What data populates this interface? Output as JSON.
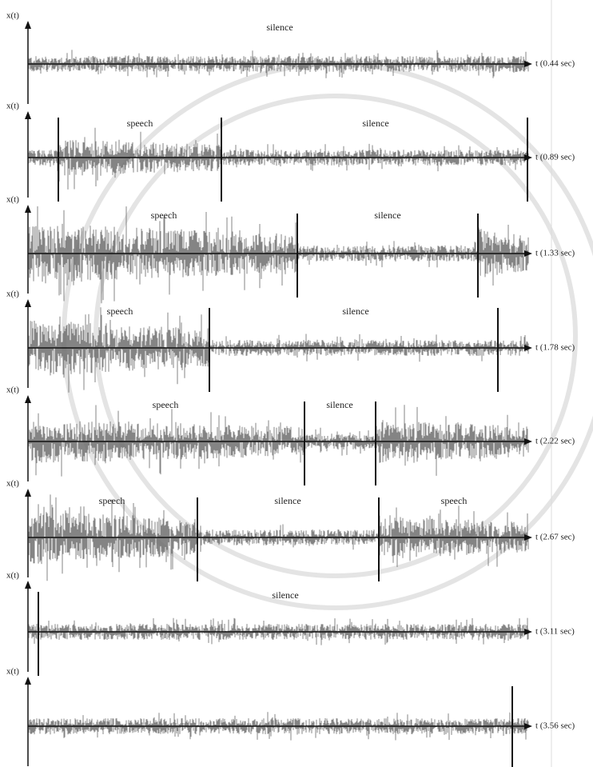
{
  "panels": [
    {
      "y_label": "x(t)",
      "t_label": "t (0.44 sec)",
      "segments": [
        "silence"
      ]
    },
    {
      "y_label": "x(t)",
      "t_label": "t (0.89 sec)",
      "segments": [
        "speech",
        "silence"
      ]
    },
    {
      "y_label": "x(t)",
      "t_label": "t (1.33 sec)",
      "segments": [
        "speech",
        "silence"
      ]
    },
    {
      "y_label": "x(t)",
      "t_label": "t (1.78 sec)",
      "segments": [
        "speech",
        "silence"
      ]
    },
    {
      "y_label": "x(t)",
      "t_label": "t (2.22 sec)",
      "segments": [
        "speech",
        "silence"
      ]
    },
    {
      "y_label": "x(t)",
      "t_label": "t (2.67 sec)",
      "segments": [
        "speech",
        "silence",
        "speech"
      ]
    },
    {
      "y_label": "x(t)",
      "t_label": "t (3.11 sec)",
      "segments": [
        "silence"
      ]
    },
    {
      "y_label": "x(t)",
      "t_label": "t (3.56 sec)",
      "segments": []
    }
  ]
}
